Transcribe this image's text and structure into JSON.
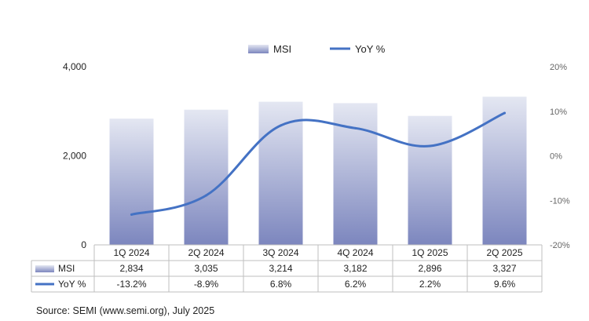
{
  "chart_data": {
    "type": "bar",
    "categories": [
      "1Q 2024",
      "2Q 2024",
      "3Q 2024",
      "4Q 2024",
      "1Q 2025",
      "2Q 2025"
    ],
    "series": [
      {
        "name": "MSI",
        "type": "bar",
        "axis": "left",
        "values": [
          2834,
          3035,
          3214,
          3182,
          2896,
          3327
        ]
      },
      {
        "name": "YoY %",
        "type": "line",
        "axis": "right",
        "values": [
          -13.2,
          -8.9,
          6.8,
          6.2,
          2.2,
          9.6
        ]
      }
    ],
    "left_axis": {
      "ylim": [
        0,
        4000
      ],
      "ticks": [
        "0",
        "2,000",
        "4,000"
      ],
      "tick_values": [
        0,
        2000,
        4000
      ]
    },
    "right_axis": {
      "ylim": [
        -20,
        20
      ],
      "ticks": [
        "-20%",
        "-10%",
        "0%",
        "10%",
        "20%"
      ],
      "tick_values": [
        -20,
        -10,
        0,
        10,
        20
      ]
    },
    "data_table": {
      "rows": [
        {
          "label": "MSI",
          "values": [
            "2,834",
            "3,035",
            "3,214",
            "3,182",
            "2,896",
            "3,327"
          ]
        },
        {
          "label": "YoY %",
          "values": [
            "-13.2%",
            "-8.9%",
            "6.8%",
            "6.2%",
            "2.2%",
            "9.6%"
          ]
        }
      ]
    },
    "legend_placement": "top-center",
    "grid": false,
    "colors": {
      "bar_top": "#e4e7f2",
      "bar_bottom": "#7c86be",
      "line": "#4472c4",
      "axis": "#bfbfbf"
    }
  },
  "source_note": "Source: SEMI (www.semi.org), July 2025"
}
